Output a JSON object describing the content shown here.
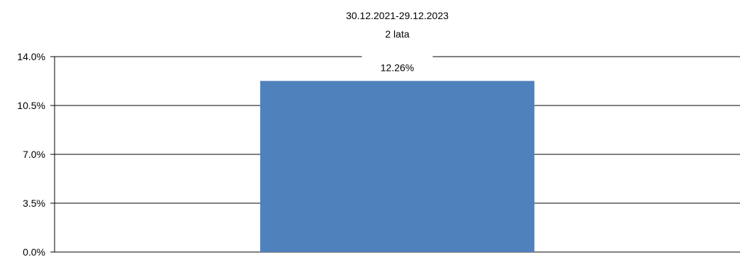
{
  "chart_data": {
    "type": "bar",
    "categories": [
      "30.12.2021-29.12.2023\n2 lata"
    ],
    "values": [
      12.26
    ],
    "value_labels": [
      "12.26%"
    ],
    "title": "",
    "xlabel": "",
    "ylabel": "",
    "ylim": [
      0,
      14
    ],
    "yticks": [
      0,
      3.5,
      7,
      10.5,
      14
    ],
    "ytick_labels": [
      "0.0%",
      "3.5%",
      "7.0%",
      "10.5%",
      "14.0%"
    ],
    "grid": true,
    "legend": "none",
    "bar_color": "#4f81bd"
  }
}
